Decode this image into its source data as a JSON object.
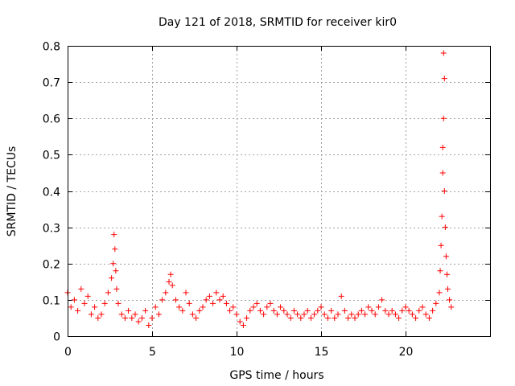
{
  "chart_data": {
    "type": "scatter",
    "title": "Day 121 of 2018, SRMTID for receiver kir0",
    "xlabel": "GPS time / hours",
    "ylabel": "SRMTID / TECUs",
    "xlim": [
      0,
      25
    ],
    "ylim": [
      0,
      0.8
    ],
    "xticks": [
      0,
      5,
      10,
      15,
      20
    ],
    "xtick_labels": [
      "0",
      "5",
      "10",
      "15",
      "20"
    ],
    "yticks": [
      0,
      0.1,
      0.2,
      0.3,
      0.4,
      0.5,
      0.6,
      0.7,
      0.8
    ],
    "ytick_labels": [
      "0",
      "0.1",
      "0.2",
      "0.3",
      "0.4",
      "0.5",
      "0.6",
      "0.7",
      "0.8"
    ],
    "grid": true,
    "legend": "none",
    "marker": "+",
    "color": "#ff0000",
    "series": [
      {
        "name": "kir0",
        "x": [
          0.0,
          0.2,
          0.4,
          0.6,
          0.8,
          1.0,
          1.2,
          1.4,
          1.6,
          1.8,
          2.0,
          2.2,
          2.4,
          2.6,
          2.7,
          2.75,
          2.8,
          2.85,
          2.9,
          3.0,
          3.2,
          3.4,
          3.6,
          3.8,
          4.0,
          4.2,
          4.4,
          4.6,
          4.8,
          5.0,
          5.2,
          5.4,
          5.6,
          5.8,
          6.0,
          6.1,
          6.2,
          6.4,
          6.6,
          6.8,
          7.0,
          7.2,
          7.4,
          7.6,
          7.8,
          8.0,
          8.2,
          8.4,
          8.6,
          8.8,
          9.0,
          9.2,
          9.4,
          9.6,
          9.8,
          10.0,
          10.2,
          10.4,
          10.6,
          10.8,
          11.0,
          11.2,
          11.4,
          11.6,
          11.8,
          12.0,
          12.2,
          12.4,
          12.6,
          12.8,
          13.0,
          13.2,
          13.4,
          13.6,
          13.8,
          14.0,
          14.2,
          14.4,
          14.6,
          14.8,
          15.0,
          15.2,
          15.4,
          15.6,
          15.8,
          16.0,
          16.2,
          16.4,
          16.6,
          16.8,
          17.0,
          17.2,
          17.4,
          17.6,
          17.8,
          18.0,
          18.2,
          18.4,
          18.6,
          18.8,
          19.0,
          19.2,
          19.4,
          19.6,
          19.8,
          20.0,
          20.2,
          20.4,
          20.6,
          20.8,
          21.0,
          21.2,
          21.4,
          21.6,
          21.8,
          22.0,
          22.05,
          22.1,
          22.15,
          22.2,
          22.2,
          22.25,
          22.25,
          22.3,
          22.3,
          22.35,
          22.4,
          22.45,
          22.5,
          22.6,
          22.7
        ],
        "y": [
          0.12,
          0.08,
          0.1,
          0.07,
          0.13,
          0.09,
          0.11,
          0.06,
          0.08,
          0.05,
          0.06,
          0.09,
          0.12,
          0.16,
          0.2,
          0.28,
          0.24,
          0.18,
          0.13,
          0.09,
          0.06,
          0.05,
          0.07,
          0.05,
          0.06,
          0.04,
          0.05,
          0.07,
          0.03,
          0.05,
          0.08,
          0.06,
          0.1,
          0.12,
          0.15,
          0.17,
          0.14,
          0.1,
          0.08,
          0.07,
          0.12,
          0.09,
          0.06,
          0.05,
          0.07,
          0.08,
          0.1,
          0.11,
          0.09,
          0.12,
          0.1,
          0.11,
          0.09,
          0.07,
          0.08,
          0.06,
          0.04,
          0.03,
          0.05,
          0.07,
          0.08,
          0.09,
          0.07,
          0.06,
          0.08,
          0.09,
          0.07,
          0.06,
          0.08,
          0.07,
          0.06,
          0.05,
          0.07,
          0.06,
          0.05,
          0.06,
          0.07,
          0.05,
          0.06,
          0.07,
          0.08,
          0.06,
          0.05,
          0.07,
          0.05,
          0.06,
          0.11,
          0.07,
          0.05,
          0.06,
          0.05,
          0.06,
          0.07,
          0.06,
          0.08,
          0.07,
          0.06,
          0.08,
          0.1,
          0.07,
          0.06,
          0.07,
          0.06,
          0.05,
          0.07,
          0.08,
          0.07,
          0.06,
          0.05,
          0.07,
          0.08,
          0.06,
          0.05,
          0.07,
          0.09,
          0.12,
          0.18,
          0.25,
          0.33,
          0.45,
          0.52,
          0.78,
          0.6,
          0.71,
          0.4,
          0.3,
          0.22,
          0.17,
          0.13,
          0.1,
          0.08
        ]
      }
    ]
  }
}
